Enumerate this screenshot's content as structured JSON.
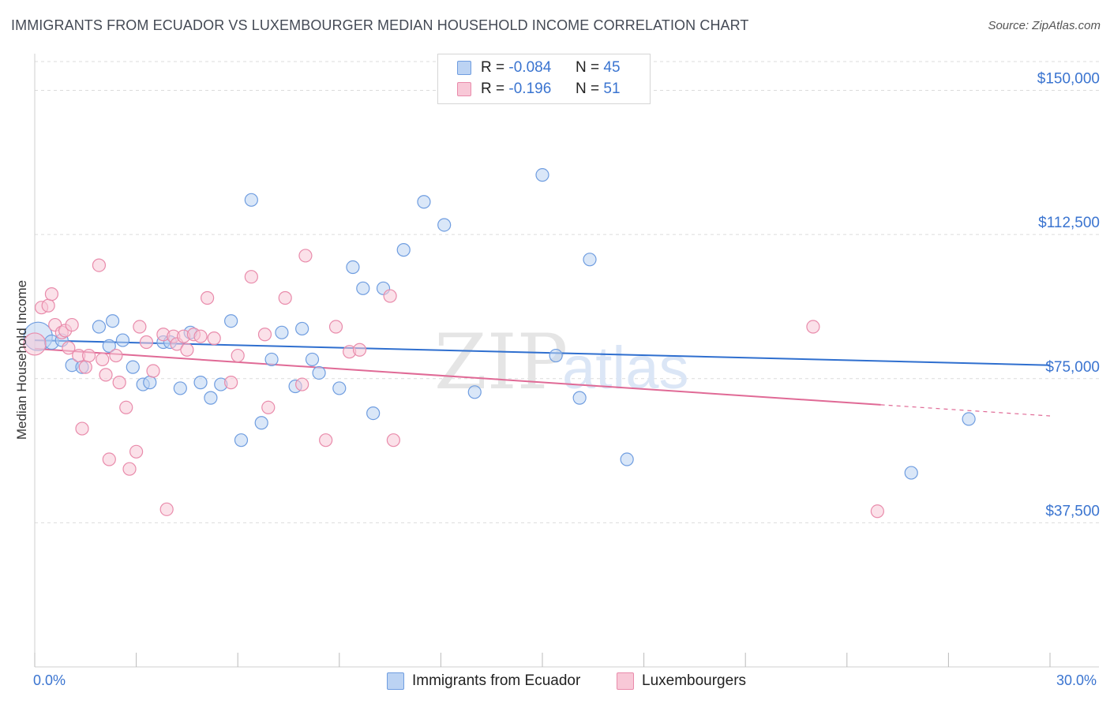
{
  "header": {
    "title": "IMMIGRANTS FROM ECUADOR VS LUXEMBOURGER MEDIAN HOUSEHOLD INCOME CORRELATION CHART",
    "source": "Source: ZipAtlas.com"
  },
  "legend": {
    "blue": {
      "r_label": "R =",
      "r_value": "-0.084",
      "n_label": "N =",
      "n_value": "45"
    },
    "pink": {
      "r_label": "R =",
      "r_value": "-0.196",
      "n_label": "N =",
      "n_value": "51"
    }
  },
  "watermark": {
    "zip": "ZIP",
    "atlas": "atlas"
  },
  "colors": {
    "blue": "#6f9de0",
    "blue_fill": "#bcd3f3",
    "blue_line": "#2f6fcf",
    "pink": "#e98bab",
    "pink_fill": "#f8c8d7",
    "pink_line": "#e06a96",
    "axis_label": "#3a74d0"
  },
  "chart_data": {
    "type": "scatter",
    "title": "IMMIGRANTS FROM ECUADOR VS LUXEMBOURGER MEDIAN HOUSEHOLD INCOME CORRELATION CHART",
    "xlabel": "",
    "ylabel": "Median Household Income",
    "xlim": [
      0,
      30
    ],
    "ylim": [
      0,
      157500
    ],
    "x_tick_labels": [
      "0.0%",
      "30.0%"
    ],
    "y_ticks": [
      37500,
      75000,
      112500,
      150000
    ],
    "y_tick_labels": [
      "$37,500",
      "$75,000",
      "$112,500",
      "$150,000"
    ],
    "grid": true,
    "series": [
      {
        "name": "Immigrants from Ecuador",
        "color": "blue",
        "trend": {
          "x": [
            0,
            30
          ],
          "y": [
            85000,
            78500
          ]
        },
        "points": [
          [
            0.1,
            86000,
            18
          ],
          [
            0.5,
            84500,
            9
          ],
          [
            0.8,
            85000,
            8
          ],
          [
            1.1,
            78500,
            8
          ],
          [
            1.4,
            78000,
            8
          ],
          [
            1.9,
            88500,
            8
          ],
          [
            2.2,
            83500,
            8
          ],
          [
            2.3,
            90000,
            8
          ],
          [
            2.6,
            85000,
            8
          ],
          [
            2.9,
            78000,
            8
          ],
          [
            3.2,
            73500,
            8
          ],
          [
            3.4,
            74000,
            8
          ],
          [
            3.8,
            84500,
            8
          ],
          [
            4.0,
            84500,
            8
          ],
          [
            4.3,
            72500,
            8
          ],
          [
            4.6,
            87000,
            8
          ],
          [
            4.9,
            74000,
            8
          ],
          [
            5.2,
            70000,
            8
          ],
          [
            5.5,
            73500,
            8
          ],
          [
            5.8,
            90000,
            8
          ],
          [
            6.1,
            59000,
            8
          ],
          [
            6.4,
            121500,
            8
          ],
          [
            6.7,
            63500,
            8
          ],
          [
            7.0,
            80000,
            8
          ],
          [
            7.3,
            87000,
            8
          ],
          [
            7.7,
            73000,
            8
          ],
          [
            7.9,
            88000,
            8
          ],
          [
            8.2,
            80000,
            8
          ],
          [
            8.4,
            76500,
            8
          ],
          [
            9.0,
            72500,
            8
          ],
          [
            9.4,
            104000,
            8
          ],
          [
            9.7,
            98500,
            8
          ],
          [
            10.0,
            66000,
            8
          ],
          [
            10.3,
            98500,
            8
          ],
          [
            10.9,
            108500,
            8
          ],
          [
            11.5,
            121000,
            8
          ],
          [
            12.1,
            115000,
            8
          ],
          [
            13.0,
            71500,
            8
          ],
          [
            15.0,
            128000,
            8
          ],
          [
            15.4,
            81000,
            8
          ],
          [
            16.1,
            70000,
            8
          ],
          [
            16.4,
            106000,
            8
          ],
          [
            17.5,
            54000,
            8
          ],
          [
            25.9,
            50500,
            8
          ],
          [
            27.6,
            64500,
            8
          ]
        ]
      },
      {
        "name": "Luxembourgers",
        "color": "pink",
        "trend": {
          "x": [
            0,
            25
          ],
          "y": [
            82800,
            68200
          ]
        },
        "trend_dashed": {
          "x": [
            25,
            30
          ],
          "y": [
            68200,
            65300
          ]
        },
        "points": [
          [
            0.0,
            84000,
            14
          ],
          [
            0.2,
            93500,
            8
          ],
          [
            0.4,
            94000,
            8
          ],
          [
            0.5,
            97000,
            8
          ],
          [
            0.6,
            89000,
            8
          ],
          [
            0.8,
            87000,
            8
          ],
          [
            0.9,
            87500,
            8
          ],
          [
            1.0,
            83000,
            8
          ],
          [
            1.1,
            89000,
            8
          ],
          [
            1.3,
            81000,
            8
          ],
          [
            1.4,
            62000,
            8
          ],
          [
            1.5,
            78000,
            8
          ],
          [
            1.6,
            81000,
            8
          ],
          [
            1.9,
            104500,
            8
          ],
          [
            2.0,
            80000,
            8
          ],
          [
            2.1,
            76000,
            8
          ],
          [
            2.2,
            54000,
            8
          ],
          [
            2.4,
            81000,
            8
          ],
          [
            2.5,
            74000,
            8
          ],
          [
            2.7,
            67500,
            8
          ],
          [
            2.8,
            51500,
            8
          ],
          [
            3.0,
            56000,
            8
          ],
          [
            3.1,
            88500,
            8
          ],
          [
            3.3,
            84500,
            8
          ],
          [
            3.5,
            77000,
            8
          ],
          [
            3.8,
            86500,
            8
          ],
          [
            3.9,
            41000,
            8
          ],
          [
            4.1,
            86000,
            8
          ],
          [
            4.2,
            84000,
            8
          ],
          [
            4.4,
            86000,
            8
          ],
          [
            4.5,
            82500,
            8
          ],
          [
            4.7,
            86500,
            8
          ],
          [
            4.9,
            86000,
            8
          ],
          [
            5.1,
            96000,
            8
          ],
          [
            5.3,
            85500,
            8
          ],
          [
            5.8,
            74000,
            8
          ],
          [
            6.0,
            81000,
            8
          ],
          [
            6.4,
            101500,
            8
          ],
          [
            6.8,
            86500,
            8
          ],
          [
            6.9,
            67500,
            8
          ],
          [
            7.4,
            96000,
            8
          ],
          [
            7.9,
            73500,
            8
          ],
          [
            8.0,
            107000,
            8
          ],
          [
            8.6,
            59000,
            8
          ],
          [
            8.9,
            88500,
            8
          ],
          [
            9.3,
            82000,
            8
          ],
          [
            9.6,
            82500,
            8
          ],
          [
            10.5,
            96500,
            8
          ],
          [
            10.6,
            59000,
            8
          ],
          [
            23.0,
            88500,
            8
          ],
          [
            24.9,
            40500,
            8
          ]
        ]
      }
    ]
  }
}
